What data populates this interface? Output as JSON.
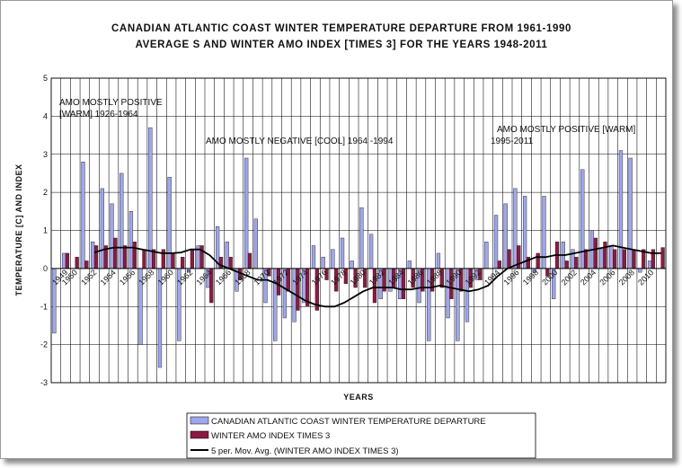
{
  "chart_data": {
    "type": "bar",
    "title_line1": "CANADIAN ATLANTIC COAST WINTER TEMPERATURE DEPARTURE FROM 1961-1990",
    "title_line2": "AVERAGE S AND WINTER AMO INDEX [TIMES 3] FOR THE YEARS 1948-2011",
    "xlabel": "YEARS",
    "ylabel": "TEMPERATURE [C] AND INDEX",
    "ylim": [
      -3,
      5
    ],
    "yticks": [
      -3,
      -2,
      -1,
      0,
      1,
      2,
      3,
      4,
      5
    ],
    "grid": true,
    "legend_position": "bottom-left",
    "x_years": [
      1948,
      1949,
      1950,
      1951,
      1952,
      1953,
      1954,
      1955,
      1956,
      1957,
      1958,
      1959,
      1960,
      1961,
      1962,
      1963,
      1964,
      1965,
      1966,
      1967,
      1968,
      1969,
      1970,
      1971,
      1972,
      1973,
      1974,
      1975,
      1976,
      1977,
      1978,
      1979,
      1980,
      1981,
      1982,
      1983,
      1984,
      1985,
      1986,
      1987,
      1988,
      1989,
      1990,
      1991,
      1992,
      1993,
      1994,
      1995,
      1996,
      1997,
      1998,
      1999,
      2000,
      2001,
      2002,
      2003,
      2004,
      2005,
      2006,
      2007,
      2008,
      2009,
      2010,
      2011
    ],
    "x_tick_labels": [
      "1949",
      "1950",
      "1952",
      "1954",
      "1956",
      "1958",
      "1960",
      "1962",
      "1964",
      "1966",
      "1968",
      "1970",
      "1972",
      "1974",
      "1976",
      "1978",
      "1980",
      "1982",
      "1984",
      "1986",
      "1988",
      "1990",
      "1992",
      "1994",
      "1996",
      "1998",
      "2000",
      "2002",
      "2004",
      "2006",
      "2008",
      "2010"
    ],
    "series": [
      {
        "name": "CANADIAN ATLANTIC COAST WINTER TEMPERATURE DEPARTURE",
        "color": "#9fa6ee",
        "values": [
          -1.7,
          0.4,
          0.0,
          2.8,
          0.7,
          2.1,
          1.7,
          2.5,
          1.5,
          -2.0,
          3.7,
          -2.6,
          2.4,
          -1.9,
          -0.1,
          0.6,
          -0.5,
          1.1,
          0.7,
          -0.6,
          2.9,
          1.3,
          -0.9,
          -1.9,
          -1.3,
          -1.4,
          -0.9,
          0.6,
          0.3,
          0.5,
          0.8,
          0.2,
          1.6,
          0.9,
          -0.8,
          -0.6,
          -0.8,
          0.2,
          -0.9,
          -1.9,
          0.4,
          -1.3,
          -1.9,
          -1.4,
          -0.3,
          0.7,
          1.4,
          1.7,
          2.1,
          1.9,
          -0.1,
          1.9,
          -0.8,
          0.7,
          0.5,
          2.6,
          1.0,
          0.5,
          0.6,
          3.1,
          2.9,
          -0.1,
          0.2,
          0.0
        ]
      },
      {
        "name": "WINTER AMO INDEX TIMES 3",
        "color": "#8b1a42",
        "values": [
          0.0,
          0.4,
          0.3,
          0.2,
          0.6,
          0.6,
          0.8,
          0.6,
          0.7,
          0.5,
          0.5,
          0.5,
          0.4,
          0.3,
          0.5,
          0.6,
          -0.9,
          0.3,
          0.3,
          -0.3,
          0.4,
          0.0,
          -0.2,
          -0.7,
          -0.6,
          -1.1,
          -1.0,
          -1.1,
          -0.3,
          -0.6,
          -0.4,
          -0.5,
          -0.5,
          -0.9,
          -0.6,
          -0.5,
          -0.8,
          -0.5,
          -0.6,
          -0.6,
          -0.5,
          -0.8,
          -0.6,
          -0.5,
          -0.3,
          0.0,
          0.2,
          0.5,
          0.6,
          0.3,
          0.4,
          -0.2,
          0.7,
          0.2,
          0.3,
          0.5,
          0.8,
          0.7,
          0.5,
          0.5,
          0.5,
          0.5,
          0.5,
          0.55
        ]
      },
      {
        "name": "5 per. Mov. Avg. (WINTER AMO INDEX TIMES 3)",
        "color": "#000000",
        "type": "line",
        "values": [
          null,
          null,
          null,
          null,
          0.42,
          0.5,
          0.55,
          0.55,
          0.55,
          0.5,
          0.45,
          0.4,
          0.4,
          0.42,
          0.5,
          0.5,
          0.35,
          0.1,
          0.0,
          -0.1,
          -0.2,
          -0.3,
          -0.3,
          -0.4,
          -0.55,
          -0.7,
          -0.85,
          -0.95,
          -1.0,
          -1.0,
          -0.9,
          -0.75,
          -0.6,
          -0.5,
          -0.5,
          -0.5,
          -0.55,
          -0.55,
          -0.5,
          -0.5,
          -0.45,
          -0.5,
          -0.55,
          -0.6,
          -0.55,
          -0.45,
          -0.2,
          0.0,
          0.1,
          0.2,
          0.3,
          0.3,
          0.35,
          0.35,
          0.4,
          0.45,
          0.5,
          0.55,
          0.6,
          0.55,
          0.5,
          0.45,
          0.4,
          0.4
        ]
      }
    ],
    "annotations": [
      {
        "line1": "AMO MOSTLY POSITIVE",
        "line2": "[WARM] 1926-1964"
      },
      {
        "line1": "AMO MOSTLY NEGATIVE [COOL] 1964 -1994",
        "line2": ""
      },
      {
        "line1": "AMO MOSTLY POSITIVE [WARM]",
        "line2": "1995-2011"
      }
    ]
  }
}
